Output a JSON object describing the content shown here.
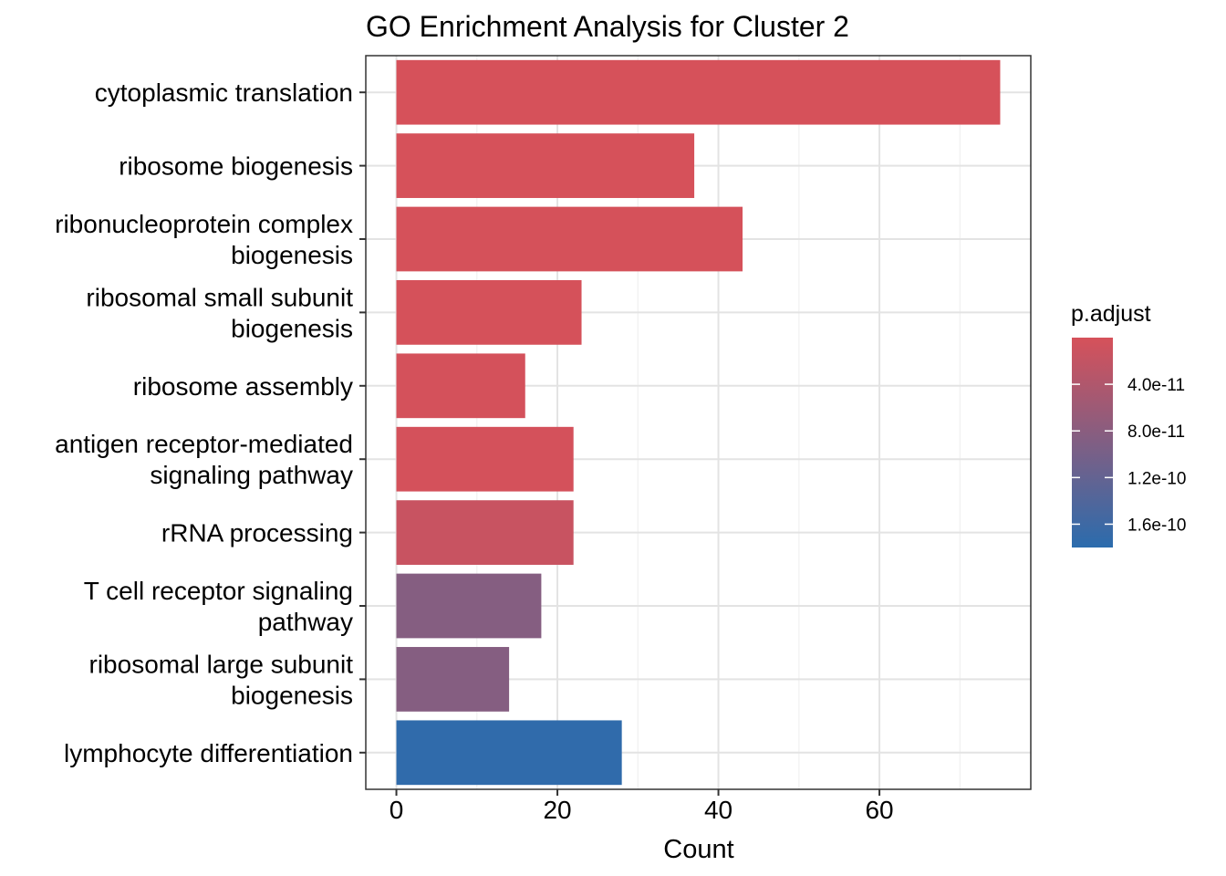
{
  "chart_data": {
    "type": "bar",
    "orientation": "horizontal",
    "title": "GO Enrichment Analysis for Cluster 2",
    "xlabel": "Count",
    "ylabel": "",
    "xlim": [
      -3.8,
      78.8
    ],
    "xticks": [
      0,
      20,
      40,
      60
    ],
    "grid": true,
    "categories": [
      [
        "cytoplasmic translation"
      ],
      [
        "ribosome biogenesis"
      ],
      [
        "ribonucleoprotein complex",
        "biogenesis"
      ],
      [
        "ribosomal small subunit",
        "biogenesis"
      ],
      [
        "ribosome assembly"
      ],
      [
        "antigen receptor-mediated",
        "signaling pathway"
      ],
      [
        "rRNA processing"
      ],
      [
        "T cell receptor signaling",
        "pathway"
      ],
      [
        "ribosomal large subunit",
        "biogenesis"
      ],
      [
        "lymphocyte differentiation"
      ]
    ],
    "values": [
      75,
      37,
      43,
      23,
      16,
      22,
      22,
      18,
      14,
      28
    ],
    "p_adjust": [
      2e-13,
      4e-13,
      6e-13,
      1e-12,
      2e-12,
      2e-12,
      1.5e-11,
      8.5e-11,
      8.5e-11,
      1.75e-10
    ],
    "legend": {
      "title": "p.adjust",
      "placement": "right",
      "range": [
        0,
        1.8e-10
      ],
      "ticks": [
        4e-11,
        8e-11,
        1.2e-10,
        1.6e-10
      ],
      "tick_labels": [
        "4.0e-11",
        "8.0e-11",
        "1.2e-10",
        "1.6e-10"
      ],
      "color_low": "#d6515a",
      "color_high": "#2b6cad"
    }
  }
}
